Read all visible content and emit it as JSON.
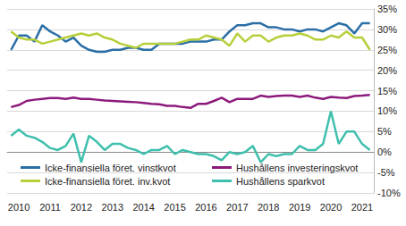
{
  "chart_data": {
    "type": "line",
    "categories": [
      null,
      "2010",
      null,
      null,
      null,
      "2011",
      null,
      null,
      null,
      "2012",
      null,
      null,
      null,
      "2013",
      null,
      null,
      null,
      "2014",
      null,
      null,
      null,
      "2015",
      null,
      null,
      null,
      "2016",
      null,
      null,
      null,
      "2017",
      null,
      null,
      null,
      "2018",
      null,
      null,
      null,
      "2019",
      null,
      null,
      null,
      "2020",
      null,
      null,
      null,
      "2021",
      null
    ],
    "series": [
      {
        "name": "Icke-finansiella föret. vinstkvot",
        "color": "#2a6ea6",
        "values": [
          25,
          28.5,
          28.5,
          27,
          31,
          29.5,
          28.5,
          27,
          28,
          26,
          25,
          24.5,
          24.5,
          25,
          25,
          25.5,
          25.5,
          25,
          25,
          26.5,
          26.5,
          26.5,
          26.5,
          27,
          27,
          27,
          27.5,
          27.5,
          29.5,
          31,
          31,
          31.5,
          31.5,
          30.5,
          30.5,
          30,
          30,
          29.5,
          30,
          30,
          29.5,
          30.5,
          31.5,
          31,
          29,
          31.5,
          31.5
        ]
      },
      {
        "name": "Hushållens investeringskvot",
        "color": "#8c1a7c",
        "values": [
          11,
          11.5,
          12.5,
          12.8,
          13,
          13.2,
          13.2,
          13,
          13.3,
          13,
          13,
          12.8,
          12.6,
          12.5,
          12.4,
          12.3,
          12.2,
          12,
          11.8,
          11.7,
          11.3,
          11.3,
          11,
          10.8,
          11.8,
          11.8,
          12.5,
          13.3,
          12.2,
          13,
          13,
          13,
          13.8,
          13.5,
          13.7,
          13.8,
          13.8,
          13.5,
          13.8,
          13.3,
          13,
          13.5,
          13.3,
          13.2,
          13.7,
          13.8,
          14
        ]
      },
      {
        "name": "Icke-finansiella föret. inv.kvot",
        "color": "#b7cf3b",
        "values": [
          29.5,
          28,
          27.5,
          27.5,
          26.5,
          27,
          27.5,
          28,
          28.5,
          29,
          28.5,
          29,
          28,
          27.5,
          26.5,
          26,
          25.5,
          26.5,
          26.5,
          26.5,
          26.5,
          26.5,
          27,
          27.5,
          27.5,
          28.5,
          28,
          27.5,
          26,
          29,
          27,
          28.5,
          28.5,
          27,
          28,
          28.5,
          28.5,
          29,
          28.5,
          27.5,
          27.5,
          28.5,
          28,
          29.5,
          28,
          28,
          25
        ]
      },
      {
        "name": "Hushållens sparkvot",
        "color": "#3fbfad",
        "values": [
          4,
          5.5,
          4,
          3.5,
          2.5,
          1,
          0.5,
          1.5,
          4.5,
          -2.5,
          4,
          2.5,
          0.5,
          2,
          2,
          1,
          0.5,
          -0.5,
          0.5,
          0.5,
          1.5,
          -0.5,
          0.5,
          0,
          -0.5,
          -0.5,
          -1,
          -2,
          0,
          -0.5,
          0,
          1.5,
          -2.5,
          -0.5,
          -1,
          -0.5,
          -0.5,
          1.5,
          0.5,
          0.5,
          2,
          10,
          2,
          5,
          5,
          2,
          0.5
        ]
      }
    ],
    "ylim": [
      -10,
      35
    ],
    "yticks": [
      {
        "value": -10,
        "label": "-10%"
      },
      {
        "value": -5,
        "label": "-5%"
      },
      {
        "value": 0,
        "label": "0%"
      },
      {
        "value": 5,
        "label": "5%"
      },
      {
        "value": 10,
        "label": "10%"
      },
      {
        "value": 15,
        "label": "15%"
      },
      {
        "value": 20,
        "label": "20%"
      },
      {
        "value": 25,
        "label": "25%"
      },
      {
        "value": 30,
        "label": "30%"
      },
      {
        "value": 35,
        "label": "35%"
      }
    ],
    "grid": true,
    "legend": "lower left"
  }
}
